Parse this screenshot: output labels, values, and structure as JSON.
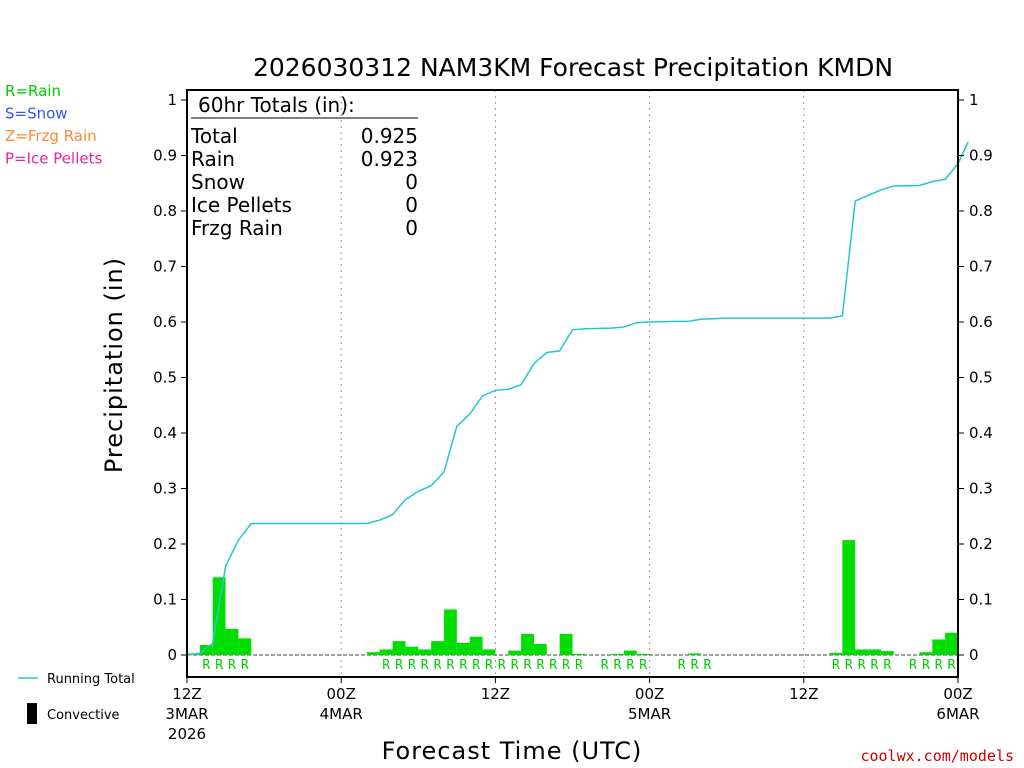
{
  "chart_data": {
    "type": "bar",
    "title": "2026030312 NAM3KM Forecast Precipitation KMDN",
    "xlabel": "Forecast Time (UTC)",
    "ylabel": "Precipitation (in)",
    "ylim": [
      0,
      1
    ],
    "yticks": [
      "0",
      "0.1",
      "0.2",
      "0.3",
      "0.4",
      "0.5",
      "0.6",
      "0.7",
      "0.8",
      "0.9",
      "1"
    ],
    "x_unit": "forecast hour",
    "xlim": [
      0,
      60
    ],
    "xticks": [
      {
        "hour": 0,
        "label": "12Z",
        "date": "3MAR",
        "year": "2026"
      },
      {
        "hour": 12,
        "label": "00Z",
        "date": "4MAR",
        "year": ""
      },
      {
        "hour": 24,
        "label": "12Z",
        "date": "",
        "year": ""
      },
      {
        "hour": 36,
        "label": "00Z",
        "date": "5MAR",
        "year": ""
      },
      {
        "hour": 48,
        "label": "12Z",
        "date": "",
        "year": ""
      },
      {
        "hour": 60,
        "label": "00Z",
        "date": "6MAR",
        "year": ""
      }
    ],
    "grid": "vertical dashed at 00Z/12Z",
    "legend_placement": "left",
    "ptype_legend": [
      {
        "text": "R=Rain",
        "color": "#00cc00"
      },
      {
        "text": "S=Snow",
        "color": "#3355ff"
      },
      {
        "text": "Z=Frzg Rain",
        "color": "#ff8833"
      },
      {
        "text": "P=Ice Pellets",
        "color": "#ee2299"
      }
    ],
    "series_legend": [
      {
        "text": "Running Total",
        "kind": "line",
        "color": "#22c8d0"
      },
      {
        "text": "Convective",
        "kind": "bar",
        "color": "#000000"
      }
    ],
    "totals": {
      "header": "60hr Totals (in):",
      "rows": [
        {
          "label": "Total",
          "value": "0.925"
        },
        {
          "label": "Rain",
          "value": "0.923"
        },
        {
          "label": "Snow",
          "value": "0"
        },
        {
          "label": "Ice Pellets",
          "value": "0"
        },
        {
          "label": "Frzg Rain",
          "value": "0"
        }
      ]
    },
    "bar_color": "#00dd00",
    "line_color": "#22c8d0",
    "bars": [
      {
        "hour": 1,
        "value": 0.003
      },
      {
        "hour": 2,
        "value": 0.018
      },
      {
        "hour": 3,
        "value": 0.14
      },
      {
        "hour": 4,
        "value": 0.047
      },
      {
        "hour": 5,
        "value": 0.03
      },
      {
        "hour": 15,
        "value": 0.005
      },
      {
        "hour": 16,
        "value": 0.01
      },
      {
        "hour": 17,
        "value": 0.025
      },
      {
        "hour": 18,
        "value": 0.015
      },
      {
        "hour": 19,
        "value": 0.01
      },
      {
        "hour": 20,
        "value": 0.025
      },
      {
        "hour": 21,
        "value": 0.082
      },
      {
        "hour": 22,
        "value": 0.022
      },
      {
        "hour": 23,
        "value": 0.033
      },
      {
        "hour": 24,
        "value": 0.01
      },
      {
        "hour": 26,
        "value": 0.008
      },
      {
        "hour": 27,
        "value": 0.038
      },
      {
        "hour": 28,
        "value": 0.02
      },
      {
        "hour": 30,
        "value": 0.038
      },
      {
        "hour": 31,
        "value": 0.002
      },
      {
        "hour": 34,
        "value": 0.002
      },
      {
        "hour": 35,
        "value": 0.008
      },
      {
        "hour": 36,
        "value": 0.002
      },
      {
        "hour": 40,
        "value": 0.003
      },
      {
        "hour": 51,
        "value": 0.004
      },
      {
        "hour": 52,
        "value": 0.207
      },
      {
        "hour": 53,
        "value": 0.01
      },
      {
        "hour": 54,
        "value": 0.01
      },
      {
        "hour": 55,
        "value": 0.007
      },
      {
        "hour": 58,
        "value": 0.005
      },
      {
        "hour": 59,
        "value": 0.028
      },
      {
        "hour": 60,
        "value": 0.04
      }
    ],
    "running_total": [
      [
        0,
        0
      ],
      [
        1,
        0.003
      ],
      [
        2,
        0.021
      ],
      [
        3,
        0.16
      ],
      [
        4,
        0.207
      ],
      [
        5,
        0.237
      ],
      [
        6,
        0.237
      ],
      [
        12,
        0.237
      ],
      [
        14,
        0.237
      ],
      [
        15,
        0.243
      ],
      [
        16,
        0.253
      ],
      [
        17,
        0.28
      ],
      [
        18,
        0.295
      ],
      [
        19,
        0.305
      ],
      [
        20,
        0.33
      ],
      [
        21,
        0.412
      ],
      [
        22,
        0.434
      ],
      [
        23,
        0.467
      ],
      [
        24,
        0.477
      ],
      [
        25,
        0.479
      ],
      [
        26,
        0.487
      ],
      [
        27,
        0.525
      ],
      [
        28,
        0.545
      ],
      [
        29,
        0.548
      ],
      [
        30,
        0.586
      ],
      [
        31,
        0.588
      ],
      [
        33,
        0.589
      ],
      [
        34,
        0.591
      ],
      [
        35,
        0.599
      ],
      [
        36,
        0.6
      ],
      [
        38,
        0.601
      ],
      [
        39,
        0.601
      ],
      [
        40,
        0.605
      ],
      [
        42,
        0.607
      ],
      [
        50,
        0.607
      ],
      [
        51,
        0.611
      ],
      [
        52,
        0.818
      ],
      [
        53,
        0.828
      ],
      [
        54,
        0.838
      ],
      [
        55,
        0.845
      ],
      [
        57,
        0.846
      ],
      [
        58,
        0.853
      ],
      [
        59,
        0.857
      ],
      [
        60,
        0.885
      ],
      [
        60.8,
        0.925
      ]
    ],
    "ptype_row": [
      {
        "hour": 2,
        "label": "R"
      },
      {
        "hour": 3,
        "label": "R"
      },
      {
        "hour": 4,
        "label": "R"
      },
      {
        "hour": 5,
        "label": "R"
      },
      {
        "hour": 16,
        "label": "R"
      },
      {
        "hour": 17,
        "label": "R"
      },
      {
        "hour": 18,
        "label": "R"
      },
      {
        "hour": 19,
        "label": "R"
      },
      {
        "hour": 20,
        "label": "R"
      },
      {
        "hour": 21,
        "label": "R"
      },
      {
        "hour": 22,
        "label": "R"
      },
      {
        "hour": 23,
        "label": "R"
      },
      {
        "hour": 24,
        "label": "R"
      },
      {
        "hour": 25,
        "label": "R"
      },
      {
        "hour": 26,
        "label": "R"
      },
      {
        "hour": 27,
        "label": "R"
      },
      {
        "hour": 28,
        "label": "R"
      },
      {
        "hour": 29,
        "label": "R"
      },
      {
        "hour": 30,
        "label": "R"
      },
      {
        "hour": 31,
        "label": "R"
      },
      {
        "hour": 33,
        "label": "R"
      },
      {
        "hour": 34,
        "label": "R"
      },
      {
        "hour": 35,
        "label": "R"
      },
      {
        "hour": 36,
        "label": "R"
      },
      {
        "hour": 39,
        "label": "R"
      },
      {
        "hour": 40,
        "label": "R"
      },
      {
        "hour": 41,
        "label": "R"
      },
      {
        "hour": 51,
        "label": "R"
      },
      {
        "hour": 52,
        "label": "R"
      },
      {
        "hour": 53,
        "label": "R"
      },
      {
        "hour": 54,
        "label": "R"
      },
      {
        "hour": 55,
        "label": "R"
      },
      {
        "hour": 57,
        "label": "R"
      },
      {
        "hour": 58,
        "label": "R"
      },
      {
        "hour": 59,
        "label": "R"
      },
      {
        "hour": 60,
        "label": "R"
      }
    ],
    "credit": "coolwx.com/models"
  }
}
